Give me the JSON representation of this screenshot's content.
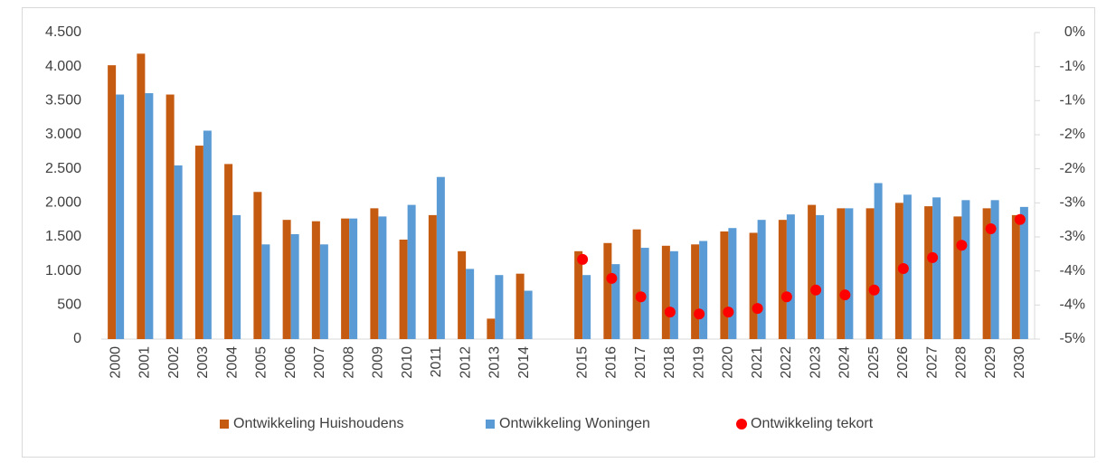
{
  "chart_data": {
    "type": "bar",
    "categories": [
      "2000",
      "2001",
      "2002",
      "2003",
      "2004",
      "2005",
      "2006",
      "2007",
      "2008",
      "2009",
      "2010",
      "2011",
      "2012",
      "2013",
      "2014",
      null,
      "2015",
      "2016",
      "2017",
      "2018",
      "2019",
      "2020",
      "2021",
      "2022",
      "2023",
      "2024",
      "2025",
      "2026",
      "2027",
      "2028",
      "2029",
      "2030"
    ],
    "series": [
      {
        "name": "Ontwikkeling Huishoudens",
        "color": "#c55a11",
        "values": [
          4020,
          4190,
          3590,
          2840,
          2570,
          2160,
          1750,
          1730,
          1770,
          1920,
          1460,
          1820,
          1290,
          300,
          960,
          null,
          1290,
          1410,
          1610,
          1370,
          1390,
          1580,
          1560,
          1750,
          1970,
          1920,
          1920,
          2000,
          1950,
          1800,
          1920,
          1820
        ]
      },
      {
        "name": "Ontwikkeling Woningen",
        "color": "#5b9bd5",
        "values": [
          3590,
          3610,
          2550,
          3060,
          1820,
          1390,
          1540,
          1390,
          1770,
          1800,
          1970,
          2380,
          1030,
          940,
          710,
          null,
          940,
          1100,
          1340,
          1290,
          1440,
          1630,
          1750,
          1830,
          1820,
          1920,
          2290,
          2120,
          2080,
          2040,
          2040,
          1940
        ]
      },
      {
        "name": "Ontwikkeling tekort",
        "color": "#ff0000",
        "type": "scatter",
        "axis": "y2",
        "values": [
          null,
          null,
          null,
          null,
          null,
          null,
          null,
          null,
          null,
          null,
          null,
          null,
          null,
          null,
          null,
          null,
          -3.7,
          -4.01,
          -4.31,
          -4.56,
          -4.59,
          -4.56,
          -4.5,
          -4.31,
          -4.2,
          -4.28,
          -4.2,
          -3.85,
          -3.67,
          -3.47,
          -3.2,
          -3.05
        ]
      }
    ],
    "ylim": [
      0,
      4500
    ],
    "yticks": [
      0,
      500,
      {
        "value": 1000,
        "label": "1.000"
      },
      {
        "value": 1500,
        "label": "1.500"
      },
      {
        "value": 2000,
        "label": "2.000"
      },
      {
        "value": 2500,
        "label": "2.500"
      },
      {
        "value": 3000,
        "label": "3.000"
      },
      {
        "value": 3500,
        "label": "3.500"
      },
      {
        "value": 4000,
        "label": "4.000"
      },
      {
        "value": 4500,
        "label": "4.500"
      }
    ],
    "y2lim": [
      -5,
      0
    ],
    "y2ticks": [
      {
        "value": -5,
        "label": "-5%"
      },
      {
        "value": -4.4444,
        "label": "-4%"
      },
      {
        "value": -3.8889,
        "label": "-4%"
      },
      {
        "value": -3.3333,
        "label": "-3%"
      },
      {
        "value": -2.7778,
        "label": "-3%"
      },
      {
        "value": -2.2222,
        "label": "-2%"
      },
      {
        "value": -1.6667,
        "label": "-2%"
      },
      {
        "value": -1.1111,
        "label": "-1%"
      },
      {
        "value": -0.5556,
        "label": "-1%"
      },
      {
        "value": 0,
        "label": "0%"
      }
    ],
    "grid": false,
    "legend": "bottom"
  }
}
